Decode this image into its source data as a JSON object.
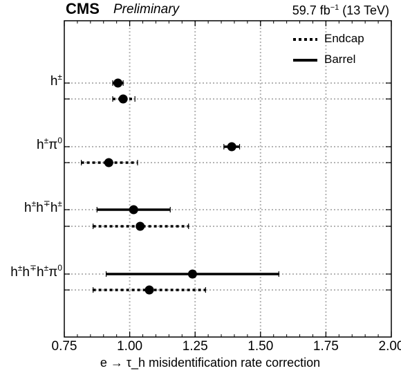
{
  "header": {
    "experiment": "CMS",
    "status": "Preliminary",
    "luminosity_prefix": "59.7 fb",
    "luminosity_exp": "−1",
    "luminosity_suffix": " (13 TeV)"
  },
  "chart_data": {
    "type": "scatter",
    "title": "",
    "xlabel": "e → τ_h misidentification rate correction",
    "xlim": [
      0.75,
      2.0
    ],
    "xticks": [
      "0.75",
      "1.00",
      "1.25",
      "1.50",
      "1.75",
      "2.00"
    ],
    "grid": true,
    "legend_position": "top-right",
    "categories": [
      "h±",
      "h±π0",
      "h±h∓h±",
      "h±h∓h±π0"
    ],
    "category_labels": [
      {
        "base": "h",
        "parts": [
          [
            "sup",
            "±"
          ]
        ]
      },
      {
        "base": "h",
        "parts": [
          [
            "sup",
            "±"
          ],
          [
            "text",
            "π"
          ],
          [
            "sup",
            "0"
          ]
        ]
      },
      {
        "base": "h",
        "parts": [
          [
            "sup",
            "±"
          ],
          [
            "text",
            "h"
          ],
          [
            "sup",
            "∓"
          ],
          [
            "text",
            "h"
          ],
          [
            "sup",
            "±"
          ]
        ]
      },
      {
        "base": "h",
        "parts": [
          [
            "sup",
            "±"
          ],
          [
            "text",
            "h"
          ],
          [
            "sup",
            "∓"
          ],
          [
            "text",
            "h"
          ],
          [
            "sup",
            "±"
          ],
          [
            "text",
            "π"
          ],
          [
            "sup",
            "0"
          ]
        ]
      }
    ],
    "series": [
      {
        "name": "Barrel",
        "style": "solid",
        "values": [
          0.955,
          1.39,
          1.015,
          1.24
        ],
        "err_low": [
          0.02,
          0.03,
          0.14,
          0.33
        ],
        "err_high": [
          0.02,
          0.03,
          0.14,
          0.33
        ]
      },
      {
        "name": "Endcap",
        "style": "dotted",
        "values": [
          0.975,
          0.92,
          1.04,
          1.075
        ],
        "err_low": [
          0.04,
          0.105,
          0.18,
          0.215
        ],
        "err_high": [
          0.045,
          0.11,
          0.185,
          0.215
        ]
      }
    ]
  }
}
